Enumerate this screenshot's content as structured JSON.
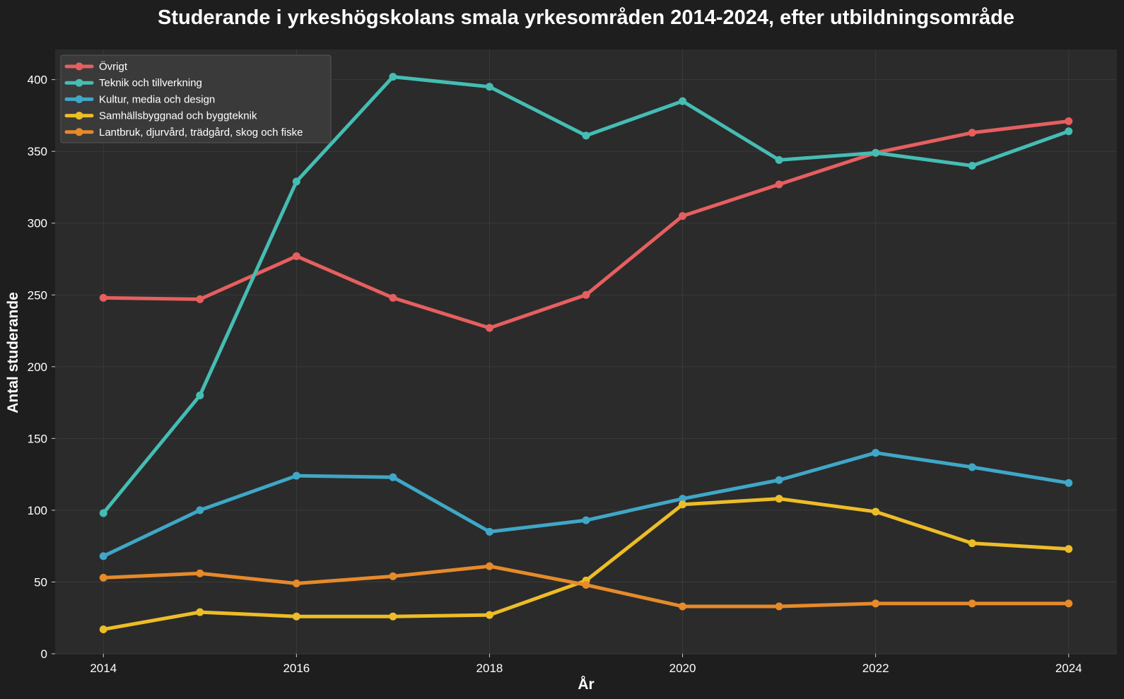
{
  "chart_data": {
    "type": "line",
    "title": "Studerande i yrkeshögskolans smala yrkesområden 2014-2024, efter utbildningsområde",
    "xlabel": "År",
    "ylabel": "Antal studerande",
    "x": [
      2014,
      2015,
      2016,
      2017,
      2018,
      2019,
      2020,
      2021,
      2022,
      2023,
      2024
    ],
    "x_ticks": [
      2014,
      2016,
      2018,
      2020,
      2022,
      2024
    ],
    "x_tick_labels": [
      "2014",
      "2016",
      "2018",
      "2020",
      "2022",
      "2024"
    ],
    "xlim": [
      2013.5,
      2024.5
    ],
    "y_ticks": [
      0,
      50,
      100,
      150,
      200,
      250,
      300,
      350,
      400
    ],
    "y_tick_labels": [
      "0",
      "50",
      "100",
      "150",
      "200",
      "250",
      "300",
      "350",
      "400"
    ],
    "ylim": [
      0,
      421
    ],
    "grid": true,
    "legend_position": "top-left",
    "background": "#1e1e1e",
    "plot_background": "#2b2b2b",
    "series": [
      {
        "name": "Övrigt",
        "color": "#e65f5f",
        "values": [
          248,
          247,
          277,
          248,
          227,
          250,
          305,
          327,
          349,
          363,
          371
        ]
      },
      {
        "name": "Teknik och tillverkning",
        "color": "#45bdb3",
        "values": [
          98,
          180,
          329,
          402,
          395,
          361,
          385,
          344,
          349,
          340,
          364
        ]
      },
      {
        "name": "Kultur, media och design",
        "color": "#3fa7c7",
        "values": [
          68,
          100,
          124,
          123,
          85,
          93,
          108,
          121,
          140,
          130,
          119
        ]
      },
      {
        "name": "Samhällsbyggnad och byggteknik",
        "color": "#edbd27",
        "values": [
          17,
          29,
          26,
          26,
          27,
          51,
          104,
          108,
          99,
          77,
          73
        ]
      },
      {
        "name": "Lantbruk, djurvård, trädgård, skog och fiske",
        "color": "#e68a2a",
        "values": [
          53,
          56,
          49,
          54,
          61,
          48,
          33,
          33,
          35,
          35,
          35
        ]
      }
    ]
  }
}
